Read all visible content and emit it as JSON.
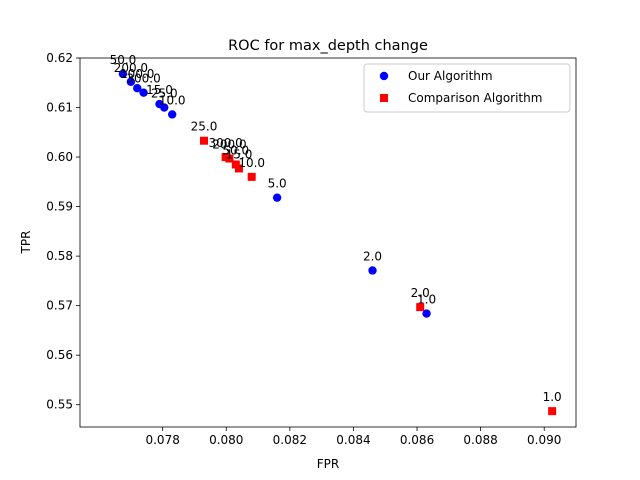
{
  "chart_data": {
    "type": "scatter",
    "title": "ROC for max_depth change",
    "xlabel": "FPR",
    "ylabel": "TPR",
    "xlim": [
      0.0754,
      0.091
    ],
    "ylim": [
      0.5455,
      0.62
    ],
    "xticks": [
      0.078,
      0.08,
      0.082,
      0.084,
      0.086,
      0.088,
      0.09
    ],
    "xtick_labels": [
      "0.078",
      "0.080",
      "0.082",
      "0.084",
      "0.086",
      "0.088",
      "0.090"
    ],
    "yticks": [
      0.55,
      0.56,
      0.57,
      0.58,
      0.59,
      0.6,
      0.61,
      0.62
    ],
    "ytick_labels": [
      "0.55",
      "0.56",
      "0.57",
      "0.58",
      "0.59",
      "0.60",
      "0.61",
      "0.62"
    ],
    "grid": false,
    "legend": {
      "position": "top-right"
    },
    "series": [
      {
        "name": "Our Algorithm",
        "color": "#0000ff",
        "marker": "circle",
        "points": [
          {
            "x": 0.07675,
            "y": 0.6168,
            "label": "50.0"
          },
          {
            "x": 0.077,
            "y": 0.6152,
            "label": "200.0"
          },
          {
            "x": 0.0772,
            "y": 0.6139,
            "label": "100.0"
          },
          {
            "x": 0.0774,
            "y": 0.613,
            "label": "300.0"
          },
          {
            "x": 0.0779,
            "y": 0.6107,
            "label": "15.0"
          },
          {
            "x": 0.07805,
            "y": 0.61,
            "label": "25.0"
          },
          {
            "x": 0.0783,
            "y": 0.6086,
            "label": "10.0"
          },
          {
            "x": 0.0816,
            "y": 0.5918,
            "label": "5.0"
          },
          {
            "x": 0.0846,
            "y": 0.5771,
            "label": "2.0"
          },
          {
            "x": 0.0863,
            "y": 0.5684,
            "label": "1.0"
          }
        ]
      },
      {
        "name": "Comparison Algorithm",
        "color": "#ff0000",
        "marker": "square",
        "points": [
          {
            "x": 0.0793,
            "y": 0.6033,
            "label": "25.0"
          },
          {
            "x": 0.07998,
            "y": 0.6,
            "label": "300.0"
          },
          {
            "x": 0.0801,
            "y": 0.5997,
            "label": "200.0"
          },
          {
            "x": 0.0803,
            "y": 0.5985,
            "label": "50.0"
          },
          {
            "x": 0.0804,
            "y": 0.5977,
            "label": "15.0"
          },
          {
            "x": 0.0808,
            "y": 0.596,
            "label": "10.0"
          },
          {
            "x": 0.0861,
            "y": 0.5697,
            "label": "2.0"
          },
          {
            "x": 0.09025,
            "y": 0.5487,
            "label": "1.0"
          }
        ]
      }
    ]
  }
}
